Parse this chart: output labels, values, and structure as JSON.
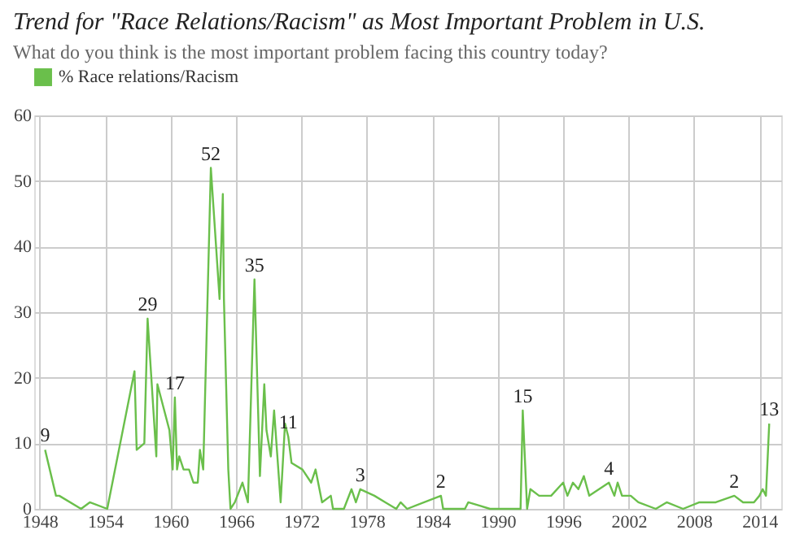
{
  "chart_data": {
    "type": "line",
    "title": "Trend for \"Race Relations/Racism\" as Most Important Problem in U.S.",
    "subtitle": "What do you think is the most important problem facing this country today?",
    "series": [
      {
        "name": "% Race relations/Racism",
        "color": "#6abf4b",
        "x": [
          1948.5,
          1949.5,
          1949.8,
          1951.8,
          1952.6,
          1954.2,
          1956.7,
          1956.9,
          1957.6,
          1957.9,
          1958.7,
          1958.8,
          1959.9,
          1960.2,
          1960.4,
          1960.6,
          1960.8,
          1961.2,
          1961.7,
          1962.1,
          1962.5,
          1962.7,
          1963.0,
          1963.7,
          1964.5,
          1964.8,
          1964.9,
          1965.3,
          1965.5,
          1965.9,
          1966.6,
          1967.1,
          1967.7,
          1968.2,
          1968.6,
          1968.8,
          1969.2,
          1969.5,
          1970.1,
          1970.5,
          1970.8,
          1971.1,
          1972.1,
          1972.9,
          1973.3,
          1973.9,
          1974.7,
          1974.9,
          1975.9,
          1976.6,
          1977.0,
          1977.4,
          1978.7,
          1979.7,
          1980.7,
          1981.1,
          1981.7,
          1984.8,
          1985.0,
          1987.0,
          1987.3,
          1988.3,
          1989.3,
          1992.1,
          1992.3,
          1992.7,
          1993.0,
          1993.8,
          1994.9,
          1996.0,
          1996.4,
          1996.9,
          1997.4,
          1997.9,
          1998.4,
          2000.2,
          2000.7,
          2001.0,
          2001.4,
          2002.2,
          2002.9,
          2004.5,
          2005.5,
          2007.0,
          2008.5,
          2010.0,
          2011.7,
          2012.5,
          2013.5,
          2014.0,
          2014.3,
          2014.6,
          2014.9
        ],
        "values": [
          9,
          2,
          2,
          0,
          1,
          0,
          21,
          9,
          10,
          29,
          8,
          19,
          12,
          6,
          17,
          6,
          8,
          6,
          6,
          4,
          4,
          9,
          6,
          52,
          32,
          48,
          32,
          6,
          0,
          1,
          4,
          1,
          35,
          5,
          19,
          12,
          8,
          15,
          1,
          13,
          11,
          7,
          6,
          4,
          6,
          1,
          2,
          0,
          0,
          3,
          1,
          3,
          2,
          1,
          0,
          1,
          0,
          2,
          0,
          0,
          1,
          0.5,
          0,
          0,
          15,
          0,
          3,
          2,
          2,
          4,
          2,
          4,
          3,
          5,
          2,
          4,
          2,
          4,
          2,
          2,
          1,
          0,
          1,
          0,
          1,
          1,
          2,
          1,
          1,
          2,
          3,
          2,
          13
        ]
      }
    ],
    "annotations": [
      {
        "text": "9",
        "x": 1948.5,
        "y": 9
      },
      {
        "text": "29",
        "x": 1957.9,
        "y": 29
      },
      {
        "text": "17",
        "x": 1960.4,
        "y": 17
      },
      {
        "text": "52",
        "x": 1963.7,
        "y": 52
      },
      {
        "text": "35",
        "x": 1967.7,
        "y": 35
      },
      {
        "text": "11",
        "x": 1970.8,
        "y": 11
      },
      {
        "text": "3",
        "x": 1977.4,
        "y": 3
      },
      {
        "text": "2",
        "x": 1984.8,
        "y": 2
      },
      {
        "text": "15",
        "x": 1992.3,
        "y": 15
      },
      {
        "text": "4",
        "x": 2000.2,
        "y": 4
      },
      {
        "text": "2",
        "x": 2011.7,
        "y": 2
      },
      {
        "text": "13",
        "x": 2014.9,
        "y": 13
      }
    ],
    "xlim": [
      1947.5,
      2016
    ],
    "xticks": [
      1948,
      1954,
      1960,
      1966,
      1972,
      1978,
      1984,
      1990,
      1996,
      2002,
      2008,
      2014
    ],
    "ylim": [
      0,
      60
    ],
    "yticks": [
      0,
      10,
      20,
      30,
      40,
      50,
      60
    ],
    "grid": true,
    "legend": "top left",
    "marker": "none",
    "line_style": "solid"
  }
}
